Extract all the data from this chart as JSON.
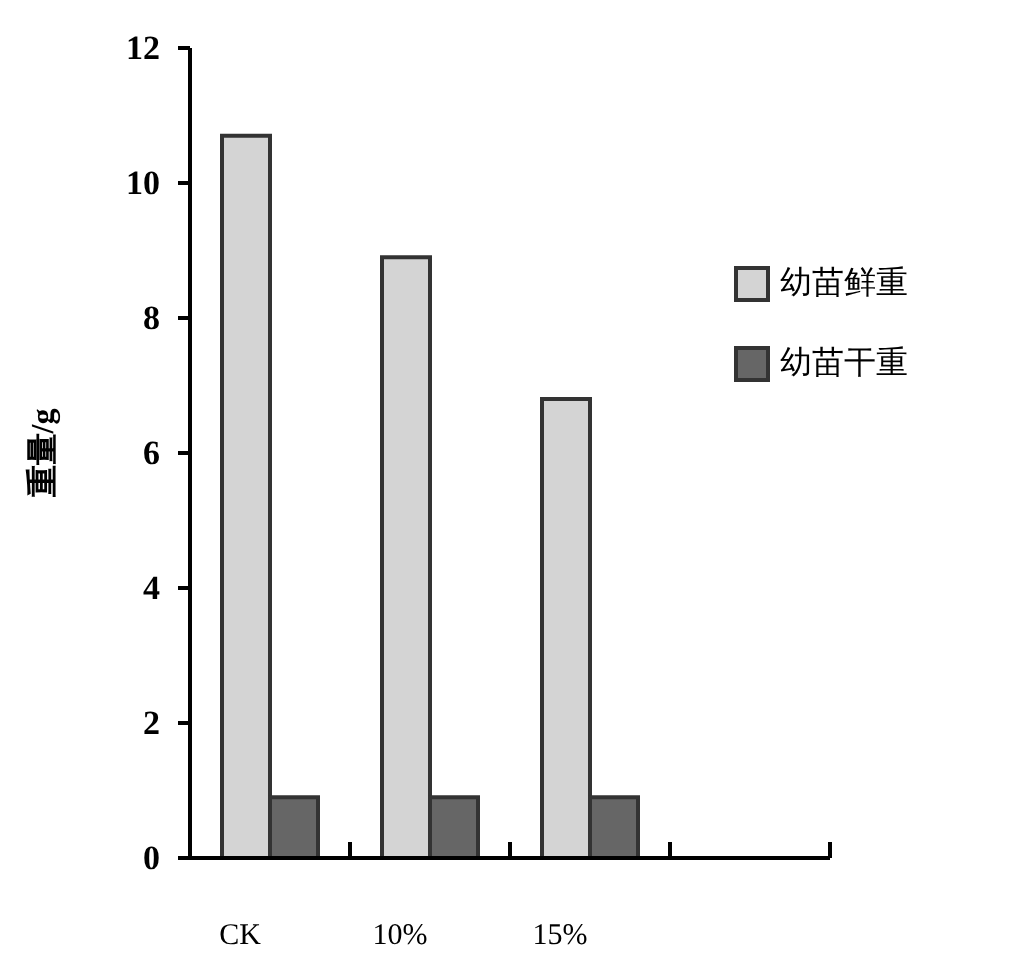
{
  "chart_data": {
    "type": "bar",
    "ylabel": "重量/g",
    "categories": [
      "CK",
      "10%",
      "15%",
      null
    ],
    "series": [
      {
        "name": "幼苗鲜重",
        "color": "#d4d4d4",
        "values": [
          10.7,
          8.9,
          6.8,
          null
        ]
      },
      {
        "name": "幼苗干重",
        "color": "#666666",
        "values": [
          0.9,
          0.9,
          0.9,
          null
        ]
      }
    ],
    "ylim": [
      0,
      12
    ],
    "yticks": [
      0,
      2,
      4,
      6,
      8,
      10,
      12
    ],
    "grid": false,
    "legend": "right"
  }
}
